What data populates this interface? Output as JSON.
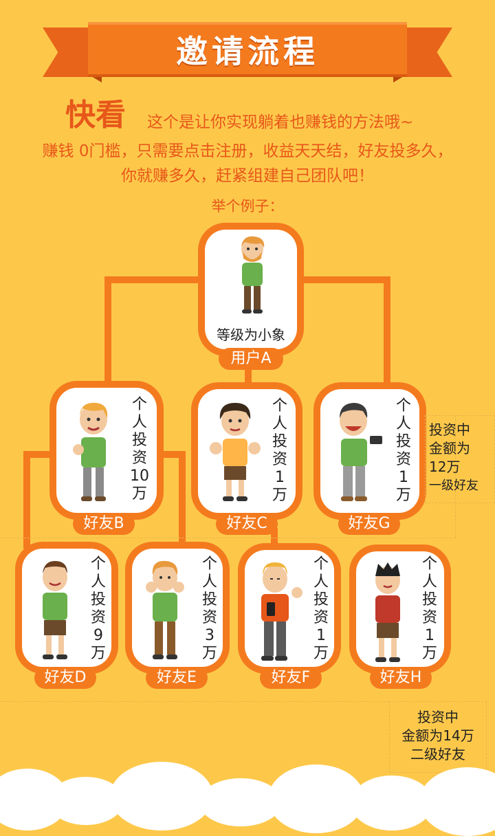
{
  "banner": {
    "title": "邀请流程"
  },
  "intro": {
    "highlight": "快看",
    "line1": "这个是让你实现躺着也赚钱的方法哦~",
    "line2": "赚钱 0门槛，只需要点击注册，收益天天结，好友投多久，",
    "line3": "你就赚多久，赶紧组建自己团队吧！",
    "example": "举个例子："
  },
  "colors": {
    "background": "#fdc84a",
    "accent": "#f47a1e",
    "text": "#e7571a"
  },
  "user_a": {
    "level": "等级为小象",
    "label": "用户A"
  },
  "friends": {
    "b": {
      "label": "好友B",
      "invest": [
        "个",
        "人",
        "投",
        "资",
        "10",
        "万"
      ]
    },
    "c": {
      "label": "好友C",
      "invest": [
        "个",
        "人",
        "投",
        "资",
        "1",
        "万"
      ]
    },
    "g": {
      "label": "好友G",
      "invest": [
        "个",
        "人",
        "投",
        "资",
        "1",
        "万"
      ]
    },
    "d": {
      "label": "好友D",
      "invest": [
        "个",
        "人",
        "投",
        "资",
        "9",
        "万"
      ]
    },
    "e": {
      "label": "好友E",
      "invest": [
        "个",
        "人",
        "投",
        "资",
        "3",
        "万"
      ]
    },
    "f": {
      "label": "好友F",
      "invest": [
        "个",
        "人",
        "投",
        "资",
        "1",
        "万"
      ]
    },
    "h": {
      "label": "好友H",
      "invest": [
        "个",
        "人",
        "投",
        "资",
        "1",
        "万"
      ]
    }
  },
  "notes": {
    "level1": [
      "投资中",
      "金额为",
      "12万",
      "一级好友"
    ],
    "level2": [
      "投资中",
      "金额为14万",
      "二级好友"
    ]
  }
}
